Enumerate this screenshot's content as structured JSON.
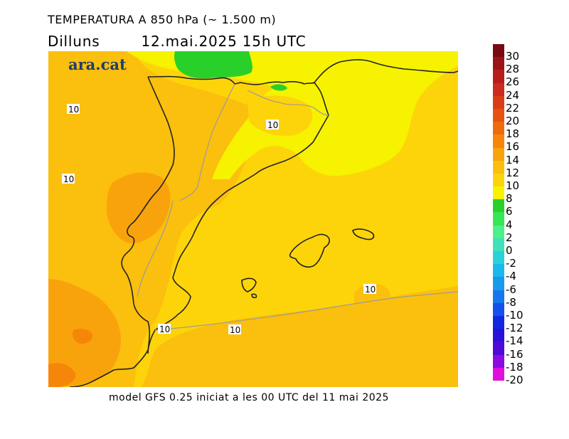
{
  "header": {
    "title": "TEMPERATURA A 850 hPa (~ 1.500 m)",
    "day": "Dilluns",
    "datetime": "12.mai.2025 15h UTC"
  },
  "map": {
    "logo": "ara.cat",
    "contour_labels": [
      "10",
      "10",
      "10",
      "10",
      "10",
      "10"
    ]
  },
  "footer": {
    "text": "model GFS 0.25 iniciat a les 00 UTC del 11 mai 2025"
  },
  "legend": {
    "labels": [
      "30",
      "28",
      "26",
      "24",
      "22",
      "20",
      "18",
      "16",
      "14",
      "12",
      "10",
      "8",
      "6",
      "4",
      "2",
      "0",
      "-2",
      "-4",
      "-6",
      "-8",
      "-10",
      "-12",
      "-14",
      "-16",
      "-18",
      "-20"
    ],
    "colors": [
      "#7a0a12",
      "#9b1419",
      "#b81d1c",
      "#cc2b1d",
      "#db3c17",
      "#e65212",
      "#ef6a0c",
      "#f5860a",
      "#f9a30c",
      "#fbbf0d",
      "#fdd40a",
      "#f6f200",
      "#2ad02a",
      "#35e655",
      "#4cf088",
      "#40e0b8",
      "#29d2d8",
      "#1ab8ec",
      "#169aec",
      "#1678ec",
      "#1450ec",
      "#1028e0",
      "#2a10d8",
      "#5008d8",
      "#8a0ce0",
      "#e20ee0"
    ]
  },
  "colors": {
    "t12_14": "#f9a30c",
    "t10_12": "#fbbf0d",
    "t8_10": "#fdd40a",
    "t6_8": "#f6f200",
    "t4_6": "#2ad02a"
  }
}
